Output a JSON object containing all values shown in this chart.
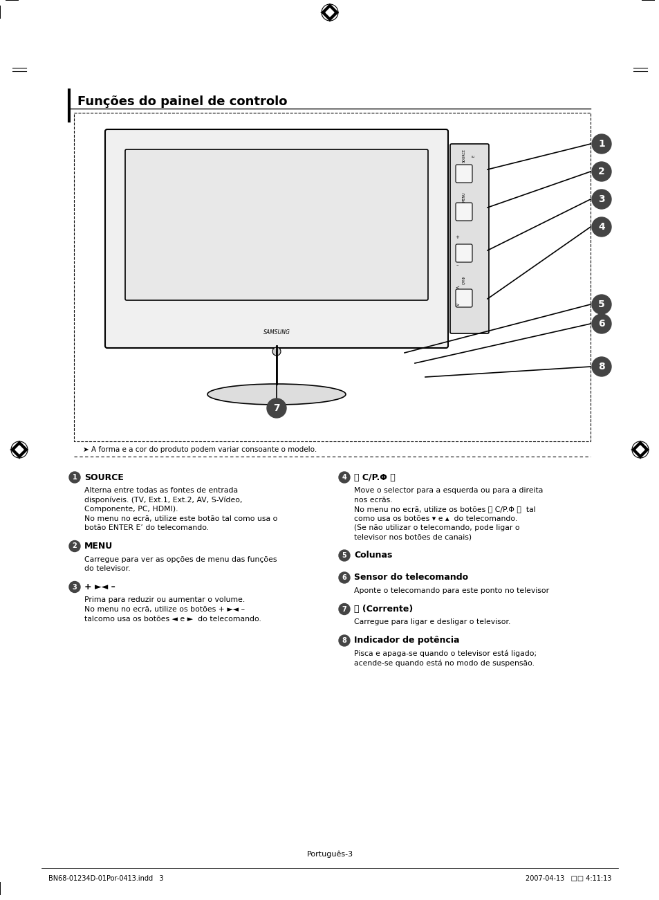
{
  "title": "Funções do painel de controlo",
  "background_color": "#ffffff",
  "page_label": "Português-3",
  "footer_left": "BN68-01234D-01Por-0413.indd   3",
  "footer_right": "2007-04-13   □□ 4:11:13",
  "note_text": "➤ A forma e a cor do produto podem variar consoante o modelo.",
  "sections": [
    {
      "num": "1",
      "heading": "SOURCE",
      "heading_extra": "E’",
      "body": "Alterna entre todas as fontes de entrada\ndisponíveis. (TV, Ext.1, Ext.2, AV, S-Vídeo,\nComponente, PC, HDMI).\nNo menu no ecrã, utilize este botão tal como usa o\nbotão ENTER E’ do telecomando."
    },
    {
      "num": "2",
      "heading": "MENU",
      "body": "Carregue para ver as opções de menu das funções\ndo televisor."
    },
    {
      "num": "3",
      "heading": "+ ►◄ –",
      "body": "Prima para reduzir ou aumentar o volume.\nNo menu no ecrã, utilize os botões + ►◄ –\ntalcomo usa os botões ◄ e ►  do telecomando."
    },
    {
      "num": "4",
      "heading": "〈 C/P.Φ 〉",
      "body": "Move o selector para a esquerda ou para a direita\nnos ecrãs.\nNo menu no ecrã, utilize os botões 〈 C/P.Φ 〉  tal\ncomo usa os botões ▾ e ▴  do telecomando.\n(Se não utilizar o telecomando, pode ligar o\ntelevisor nos botões de canais)"
    },
    {
      "num": "5",
      "heading": "Colunas",
      "body": ""
    },
    {
      "num": "6",
      "heading": "Sensor do telecomando",
      "body": "Aponte o telecomando para este ponto no televisor"
    },
    {
      "num": "7",
      "heading": "⏻ (Corrente)",
      "body": "Carregue para ligar e desligar o televisor."
    },
    {
      "num": "8",
      "heading": "Indicador de potência",
      "body": "Pisca e apaga-se quando o televisor está ligado;\nacende-se quando está no modo de suspensão."
    }
  ]
}
